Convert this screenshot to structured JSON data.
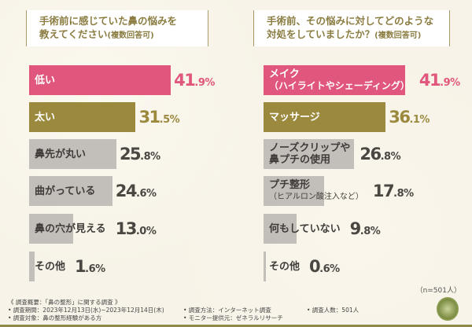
{
  "colors": {
    "top1": "#e0567c",
    "top2": "#9b8a3e",
    "rest": "#c2beb9",
    "value_rest": "#4a4642"
  },
  "left": {
    "title_line1": "手術前に感じていた鼻の悩みを",
    "title_line2": "教えてください",
    "title_note": "(複数回答可)"
  },
  "right": {
    "title_line1": "手術前、その悩みに対してどのような",
    "title_line2": "対処をしていましたか？",
    "title_note": "(複数回答可)"
  },
  "chart_data": [
    {
      "type": "bar",
      "orientation": "horizontal",
      "unit": "%",
      "categories": [
        "低い",
        "太い",
        "鼻先が丸い",
        "曲がっている",
        "鼻の穴が見える",
        "その他"
      ],
      "values": [
        41.9,
        31.5,
        25.8,
        24.6,
        13.0,
        1.6
      ]
    },
    {
      "type": "bar",
      "orientation": "horizontal",
      "unit": "%",
      "categories": [
        "メイク（ハイライトやシェーディング）",
        "マッサージ",
        "ノーズクリップや鼻プチの使用",
        "プチ整形（ヒアルロン酸注入など）",
        "何もしていない",
        "その他"
      ],
      "values": [
        41.9,
        36.1,
        26.8,
        17.8,
        9.8,
        0.6
      ]
    }
  ],
  "right_labels": [
    [
      "メイク",
      "（ハイライトやシェーディング）"
    ],
    [
      "マッサージ",
      ""
    ],
    [
      "ノーズクリップや",
      "鼻プチの使用"
    ],
    [
      "プチ整形",
      "（ヒアルロン酸注入など）"
    ],
    [
      "何もしていない",
      ""
    ],
    [
      "その他",
      ""
    ]
  ],
  "sample": "（n=501人）",
  "footer": {
    "overview": "《 調査概要：「鼻の整形」に関する調査 》",
    "period": "• 調査期間：2023年12月13日(水)~2023年12月14日(木)",
    "target": "• 調査対象：鼻の整形経験がある方",
    "method": "• 調査方法：インターネット調査",
    "provider": "• モニター提供元：ゼネラルリサーチ",
    "count": "• 調査人数：501人"
  }
}
